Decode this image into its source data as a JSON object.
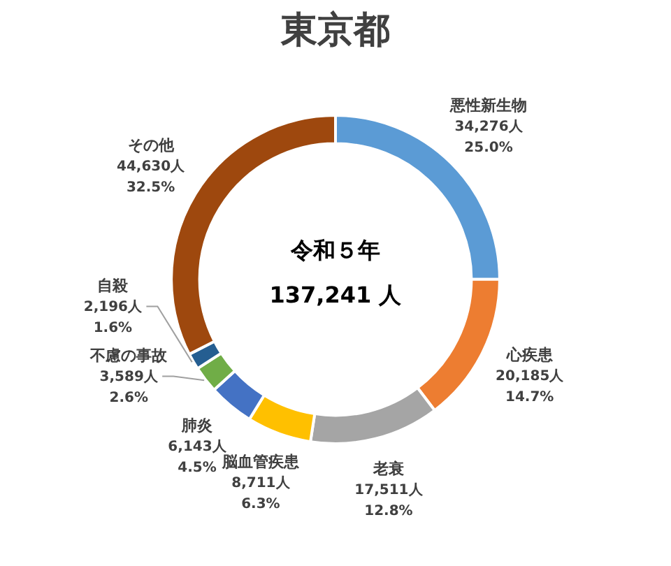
{
  "chart_data": {
    "type": "donut",
    "title": "東京都",
    "categories": [
      "悪性新生物",
      "心疾患",
      "老衰",
      "脳血管疾患",
      "肺炎",
      "不慮の事故",
      "自殺",
      "その他"
    ],
    "values": [
      34276,
      20185,
      17511,
      8711,
      6143,
      3589,
      2196,
      44630
    ],
    "colors": [
      "#5b9bd5",
      "#ed7d31",
      "#a5a5a5",
      "#ffc000",
      "#4472c4",
      "#70ad47",
      "#255e91",
      "#9e480e"
    ],
    "value_labels": [
      "34,276人\n25.0%",
      "20,185人\n14.7%",
      "17,511人\n12.8%",
      "8,711人\n6.3%",
      "6,143人\n4.5%",
      "3,589人\n2.6%",
      "2,196人\n1.6%",
      "44,630人\n32.5%"
    ],
    "annotations": [
      "令和５年",
      "137,241 人"
    ],
    "legend": false
  }
}
